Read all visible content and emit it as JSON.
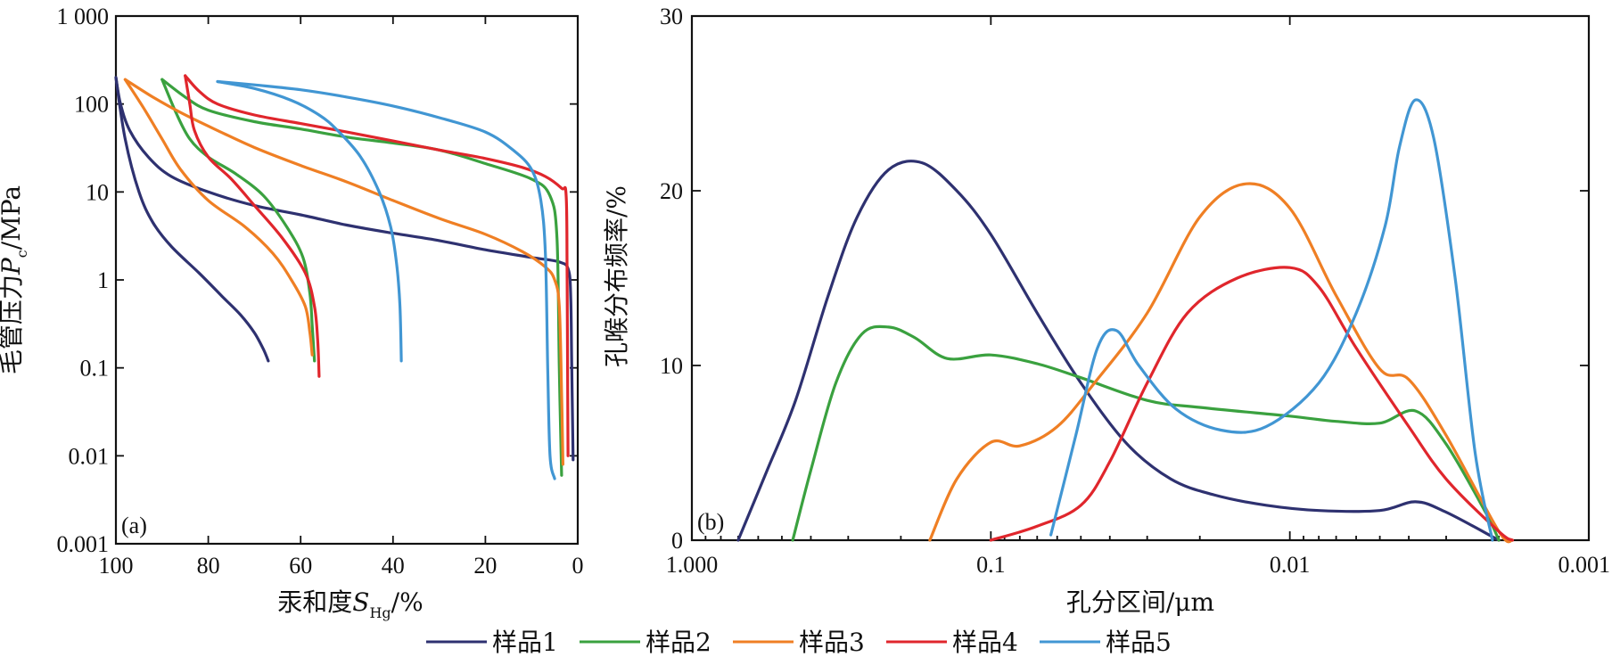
{
  "colors": {
    "s1": "#2e3170",
    "s2": "#3aa13f",
    "s3": "#ef7f24",
    "s4": "#e0262c",
    "s5": "#4196d3"
  },
  "legend": [
    {
      "key": "s1",
      "label": "样品1"
    },
    {
      "key": "s2",
      "label": "样品2"
    },
    {
      "key": "s3",
      "label": "样品3"
    },
    {
      "key": "s4",
      "label": "样品4"
    },
    {
      "key": "s5",
      "label": "样品5"
    }
  ],
  "chart_data": [
    {
      "type": "line",
      "panel_label": "(a)",
      "ylabel": {
        "pre": "毛管压力",
        "sym": "P",
        "sub": "c",
        "post": "/MPa"
      },
      "xlabel": {
        "pre": "汞和度",
        "sym": "S",
        "sub": "Hg",
        "post": "/%"
      },
      "x_scale": "linear",
      "x_reversed": true,
      "xlim": [
        0,
        100
      ],
      "x_ticks": [
        100,
        80,
        60,
        40,
        20,
        0
      ],
      "x_tick_labels": [
        "100",
        "80",
        "60",
        "40",
        "20",
        "0"
      ],
      "y_scale": "log",
      "ylim": [
        0.001,
        1000
      ],
      "y_ticks": [
        1000,
        100,
        10,
        1,
        0.1,
        0.01,
        0.001
      ],
      "y_tick_labels": [
        "1 000",
        "100",
        "10",
        "1",
        "0.1",
        "0.01",
        "0.001"
      ],
      "series": [
        {
          "key": "s1",
          "intrusion": [
            [
              100,
              200
            ],
            [
              99,
              100
            ],
            [
              97,
              50
            ],
            [
              93,
              25
            ],
            [
              88,
              15
            ],
            [
              80,
              10
            ],
            [
              70,
              7
            ],
            [
              60,
              5.5
            ],
            [
              50,
              4.2
            ],
            [
              40,
              3.4
            ],
            [
              30,
              2.8
            ],
            [
              20,
              2.2
            ],
            [
              10,
              1.8
            ],
            [
              4,
              1.6
            ],
            [
              2,
              1.3
            ],
            [
              1.5,
              0.6
            ],
            [
              1.3,
              0.1
            ],
            [
              1.0,
              0.009
            ]
          ],
          "extrusion": [
            [
              100,
              200
            ],
            [
              98,
              40
            ],
            [
              95,
              10
            ],
            [
              92,
              4.5
            ],
            [
              88,
              2.4
            ],
            [
              82,
              1.2
            ],
            [
              77,
              0.65
            ],
            [
              73,
              0.4
            ],
            [
              70,
              0.25
            ],
            [
              68,
              0.16
            ],
            [
              67,
              0.12
            ]
          ]
        },
        {
          "key": "s2",
          "intrusion": [
            [
              90,
              190
            ],
            [
              85,
              120
            ],
            [
              80,
              85
            ],
            [
              70,
              63
            ],
            [
              60,
              52
            ],
            [
              50,
              42
            ],
            [
              40,
              36
            ],
            [
              30,
              30
            ],
            [
              20,
              21
            ],
            [
              10,
              14
            ],
            [
              6,
              9
            ],
            [
              4.5,
              3
            ],
            [
              4,
              0.1
            ],
            [
              3.5,
              0.006
            ]
          ],
          "extrusion": [
            [
              90,
              190
            ],
            [
              87,
              80
            ],
            [
              84,
              40
            ],
            [
              80,
              25
            ],
            [
              74,
              16
            ],
            [
              68,
              9
            ],
            [
              63,
              4
            ],
            [
              59.5,
              1.8
            ],
            [
              58,
              0.7
            ],
            [
              57.5,
              0.3
            ],
            [
              57,
              0.12
            ]
          ]
        },
        {
          "key": "s3",
          "intrusion": [
            [
              98,
              190
            ],
            [
              92,
              120
            ],
            [
              86,
              80
            ],
            [
              78,
              50
            ],
            [
              70,
              32
            ],
            [
              60,
              20
            ],
            [
              50,
              13
            ],
            [
              40,
              8
            ],
            [
              30,
              5
            ],
            [
              20,
              3.3
            ],
            [
              12,
              2.1
            ],
            [
              7,
              1.4
            ],
            [
              5,
              1.0
            ],
            [
              4,
              0.5
            ],
            [
              3.5,
              0.05
            ],
            [
              3.2,
              0.008
            ]
          ],
          "extrusion": [
            [
              98,
              190
            ],
            [
              94,
              90
            ],
            [
              90,
              40
            ],
            [
              86,
              18
            ],
            [
              80,
              8
            ],
            [
              72,
              4
            ],
            [
              66,
              2
            ],
            [
              62,
              1
            ],
            [
              59,
              0.5
            ],
            [
              58,
              0.25
            ],
            [
              57.5,
              0.14
            ]
          ]
        },
        {
          "key": "s4",
          "intrusion": [
            [
              85,
              210
            ],
            [
              82,
              140
            ],
            [
              78,
              100
            ],
            [
              70,
              75
            ],
            [
              60,
              60
            ],
            [
              50,
              48
            ],
            [
              40,
              38
            ],
            [
              30,
              30
            ],
            [
              20,
              24
            ],
            [
              12,
              19
            ],
            [
              7,
              15
            ],
            [
              3.5,
              11
            ],
            [
              2.5,
              9
            ],
            [
              2.3,
              1
            ],
            [
              2.1,
              0.01
            ]
          ],
          "extrusion": [
            [
              85,
              210
            ],
            [
              84,
              100
            ],
            [
              83,
              50
            ],
            [
              80,
              25
            ],
            [
              75,
              14
            ],
            [
              70,
              7
            ],
            [
              64,
              3
            ],
            [
              59,
              1.2
            ],
            [
              57,
              0.5
            ],
            [
              56.3,
              0.2
            ],
            [
              56,
              0.08
            ]
          ]
        },
        {
          "key": "s5",
          "intrusion": [
            [
              78,
              180
            ],
            [
              70,
              165
            ],
            [
              60,
              145
            ],
            [
              50,
              120
            ],
            [
              40,
              95
            ],
            [
              30,
              70
            ],
            [
              20,
              48
            ],
            [
              14,
              30
            ],
            [
              10,
              18
            ],
            [
              8,
              8
            ],
            [
              7,
              2
            ],
            [
              6.5,
              0.1
            ],
            [
              6.0,
              0.01
            ],
            [
              5.0,
              0.0055
            ]
          ],
          "extrusion": [
            [
              78,
              180
            ],
            [
              70,
              150
            ],
            [
              62,
              110
            ],
            [
              56,
              75
            ],
            [
              52,
              50
            ],
            [
              47,
              25
            ],
            [
              43,
              10
            ],
            [
              40.5,
              4
            ],
            [
              39.2,
              1.5
            ],
            [
              38.5,
              0.5
            ],
            [
              38.2,
              0.12
            ]
          ]
        }
      ]
    },
    {
      "type": "line",
      "panel_label": "(b)",
      "ylabel": "孔喉分布频率/%",
      "xlabel": "孔分区间/μm",
      "x_scale": "log",
      "x_reversed": true,
      "xlim": [
        0.001,
        1.0
      ],
      "x_ticks": [
        1.0,
        0.1,
        0.01,
        0.001
      ],
      "x_tick_labels": [
        "1.000",
        "0.1",
        "0.01",
        "0.001"
      ],
      "y_scale": "linear",
      "ylim": [
        0,
        30
      ],
      "y_ticks": [
        0,
        10,
        20,
        30
      ],
      "y_tick_labels": [
        "0",
        "10",
        "20",
        "30"
      ],
      "series": [
        {
          "key": "s1",
          "points": [
            [
              0.7,
              0
            ],
            [
              0.56,
              4
            ],
            [
              0.45,
              8
            ],
            [
              0.35,
              14
            ],
            [
              0.28,
              18.5
            ],
            [
              0.22,
              21.2
            ],
            [
              0.17,
              21.6
            ],
            [
              0.13,
              20
            ],
            [
              0.1,
              17.5
            ],
            [
              0.07,
              13
            ],
            [
              0.05,
              9
            ],
            [
              0.035,
              5.5
            ],
            [
              0.025,
              3.5
            ],
            [
              0.018,
              2.6
            ],
            [
              0.012,
              2.0
            ],
            [
              0.008,
              1.7
            ],
            [
              0.005,
              1.7
            ],
            [
              0.0038,
              2.2
            ],
            [
              0.003,
              1.6
            ],
            [
              0.002,
              0
            ]
          ]
        },
        {
          "key": "s2",
          "points": [
            [
              0.46,
              0
            ],
            [
              0.4,
              4
            ],
            [
              0.33,
              9
            ],
            [
              0.27,
              11.8
            ],
            [
              0.22,
              12.2
            ],
            [
              0.18,
              11.6
            ],
            [
              0.14,
              10.4
            ],
            [
              0.1,
              10.6
            ],
            [
              0.07,
              10.1
            ],
            [
              0.05,
              9.3
            ],
            [
              0.03,
              8
            ],
            [
              0.02,
              7.6
            ],
            [
              0.01,
              7.1
            ],
            [
              0.007,
              6.8
            ],
            [
              0.005,
              6.7
            ],
            [
              0.0038,
              7.4
            ],
            [
              0.003,
              5.5
            ],
            [
              0.0022,
              1.5
            ],
            [
              0.002,
              0
            ]
          ]
        },
        {
          "key": "s3",
          "points": [
            [
              0.16,
              0
            ],
            [
              0.13,
              3.5
            ],
            [
              0.1,
              5.6
            ],
            [
              0.08,
              5.4
            ],
            [
              0.06,
              6.5
            ],
            [
              0.045,
              9
            ],
            [
              0.03,
              13
            ],
            [
              0.02,
              18.5
            ],
            [
              0.014,
              20.4
            ],
            [
              0.01,
              19
            ],
            [
              0.007,
              14
            ],
            [
              0.005,
              9.8
            ],
            [
              0.004,
              9.2
            ],
            [
              0.003,
              6
            ],
            [
              0.002,
              0.5
            ],
            [
              0.0018,
              0
            ]
          ]
        },
        {
          "key": "s4",
          "points": [
            [
              0.1,
              0
            ],
            [
              0.07,
              0.8
            ],
            [
              0.05,
              2
            ],
            [
              0.04,
              4.5
            ],
            [
              0.03,
              9
            ],
            [
              0.022,
              13
            ],
            [
              0.015,
              15
            ],
            [
              0.01,
              15.6
            ],
            [
              0.008,
              14.5
            ],
            [
              0.006,
              11
            ],
            [
              0.004,
              6.5
            ],
            [
              0.003,
              3.5
            ],
            [
              0.002,
              0.5
            ],
            [
              0.0018,
              0
            ]
          ]
        },
        {
          "key": "s5",
          "points": [
            [
              0.063,
              0.3
            ],
            [
              0.052,
              6
            ],
            [
              0.044,
              11
            ],
            [
              0.038,
              12
            ],
            [
              0.032,
              10
            ],
            [
              0.024,
              7.5
            ],
            [
              0.017,
              6.3
            ],
            [
              0.012,
              6.5
            ],
            [
              0.008,
              9
            ],
            [
              0.006,
              13
            ],
            [
              0.0048,
              18
            ],
            [
              0.0043,
              22.5
            ],
            [
              0.0038,
              25.2
            ],
            [
              0.0033,
              23
            ],
            [
              0.0028,
              15
            ],
            [
              0.0024,
              5
            ],
            [
              0.0021,
              0
            ]
          ]
        }
      ]
    }
  ]
}
